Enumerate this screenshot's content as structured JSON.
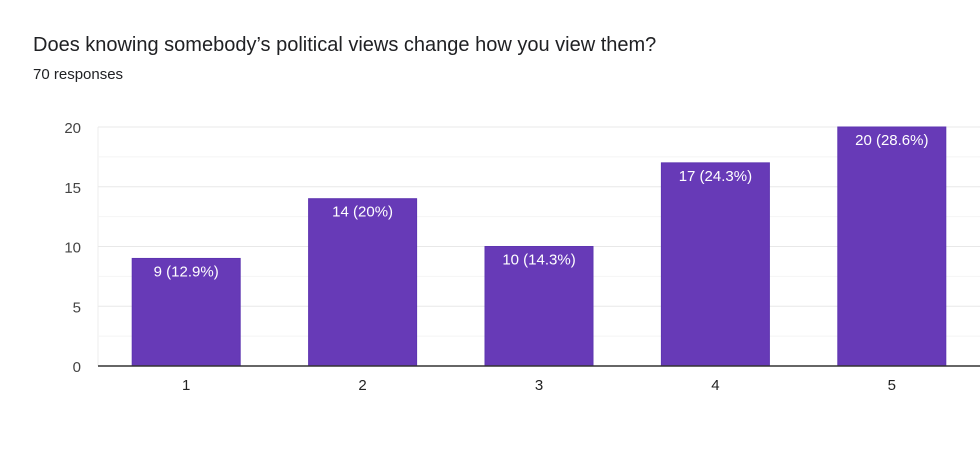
{
  "chart_data": {
    "type": "bar",
    "title": "Does knowing somebody’s political views change how you view them?",
    "subtitle": "70 responses",
    "categories": [
      "1",
      "2",
      "3",
      "4",
      "5"
    ],
    "values": [
      9,
      14,
      10,
      17,
      20
    ],
    "data_labels": [
      "9 (12.9%)",
      "14 (20%)",
      "10 (14.3%)",
      "17 (24.3%)",
      "20 (28.6%)"
    ],
    "ylim": [
      0,
      20
    ],
    "yticks": [
      0,
      5,
      10,
      15,
      20
    ],
    "xlabel": "",
    "ylabel": "",
    "grid": true,
    "bar_color": "#673ab7"
  }
}
